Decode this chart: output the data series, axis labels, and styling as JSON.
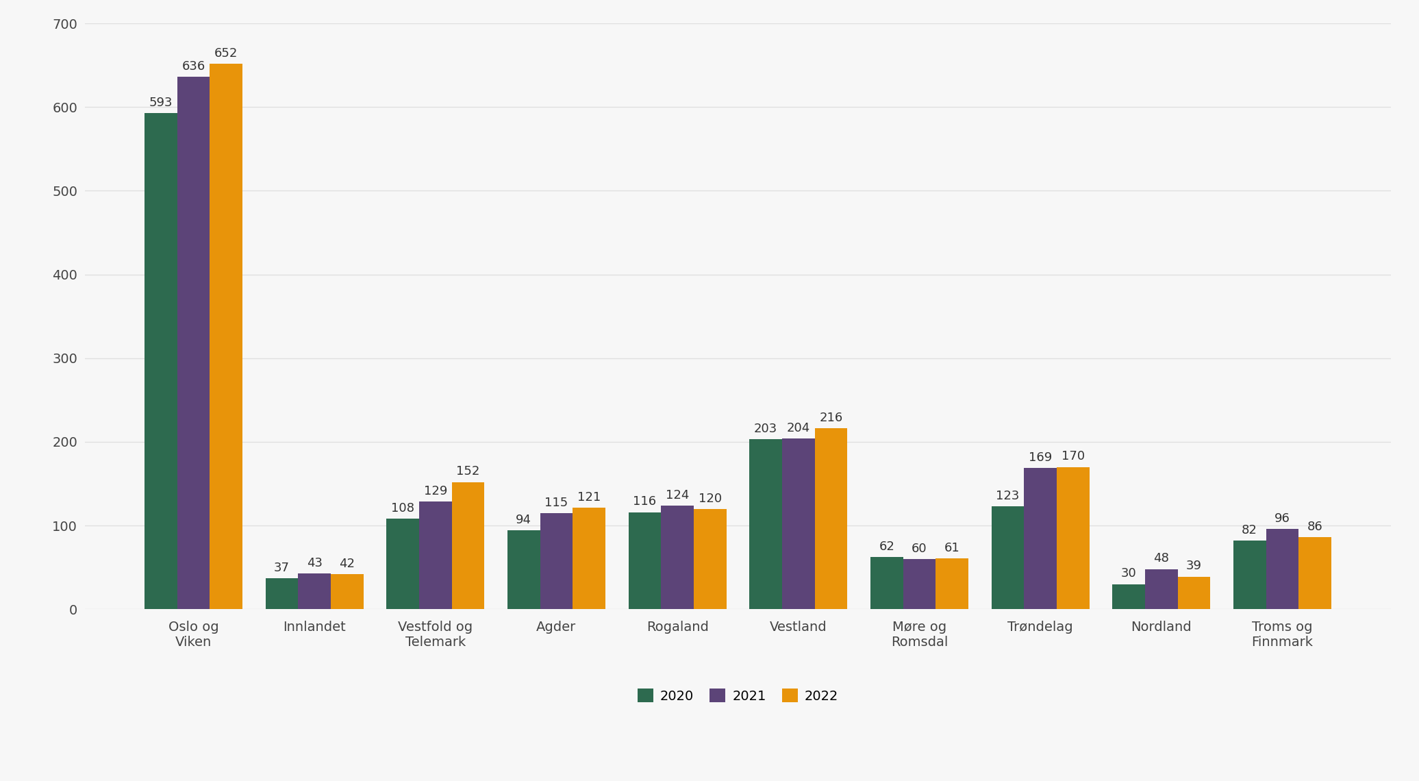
{
  "categories": [
    "Oslo og\nViken",
    "Innlandet",
    "Vestfold og\nTelemark",
    "Agder",
    "Rogaland",
    "Vestland",
    "Møre og\nRomsdal",
    "Trøndelag",
    "Nordland",
    "Troms og\nFinnmark"
  ],
  "series": {
    "2020": [
      593,
      37,
      108,
      94,
      116,
      203,
      62,
      123,
      30,
      82
    ],
    "2021": [
      636,
      43,
      129,
      115,
      124,
      204,
      60,
      169,
      48,
      96
    ],
    "2022": [
      652,
      42,
      152,
      121,
      120,
      216,
      61,
      170,
      39,
      86
    ]
  },
  "colors": {
    "2020": "#2d6a4f",
    "2021": "#5c4478",
    "2022": "#e8940a"
  },
  "ylim": [
    0,
    700
  ],
  "yticks": [
    0,
    100,
    200,
    300,
    400,
    500,
    600,
    700
  ],
  "background_color": "#f7f7f7",
  "grid_color": "#e0e0e0",
  "bar_width": 0.27,
  "legend_labels": [
    "2020",
    "2021",
    "2022"
  ],
  "tick_fontsize": 14,
  "value_fontsize": 13
}
